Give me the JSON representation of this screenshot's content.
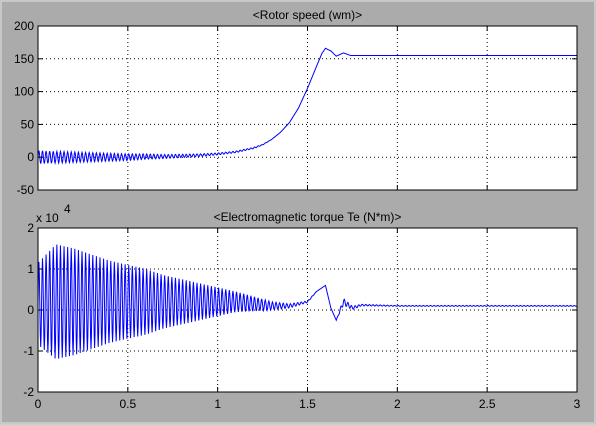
{
  "chart_data": [
    {
      "type": "line",
      "title": "<Rotor speed (wm)>",
      "xlabel": "",
      "ylabel": "",
      "xlim": [
        0,
        3
      ],
      "ylim": [
        -50,
        200
      ],
      "xticks": [
        0,
        0.5,
        1,
        1.5,
        2,
        2.5,
        3
      ],
      "xtick_labels": [
        "",
        "",
        "",
        "",
        "",
        "",
        ""
      ],
      "yticks": [
        -50,
        0,
        50,
        100,
        150,
        200
      ],
      "ytick_labels": [
        "-50",
        "0",
        "50",
        "100",
        "150",
        "200"
      ],
      "exponent_label": "",
      "grid": true,
      "color": "#0000ff",
      "series": [
        {
          "x": [
            0,
            0.1,
            0.2,
            0.3,
            0.4,
            0.5,
            0.6,
            0.7,
            0.8,
            0.9,
            1.0,
            1.1,
            1.2,
            1.25,
            1.3,
            1.35,
            1.4,
            1.45,
            1.5,
            1.53,
            1.56,
            1.58,
            1.6,
            1.63,
            1.66,
            1.7,
            1.74,
            1.8,
            2.0,
            2.5,
            3.0
          ],
          "values": [
            0,
            0,
            0,
            0,
            0,
            0,
            1,
            1,
            2,
            3,
            5,
            8,
            14,
            19,
            27,
            38,
            53,
            75,
            105,
            125,
            145,
            158,
            166,
            162,
            154,
            159,
            155,
            155,
            155,
            155,
            155
          ],
          "oscillation_amplitude": [
            10,
            9,
            8,
            7,
            6,
            5,
            4,
            3,
            2.5,
            2,
            1.5,
            1.2,
            1,
            0.5,
            0,
            0,
            0,
            0,
            0,
            0,
            0,
            0,
            0,
            0,
            0,
            0,
            0,
            0,
            0,
            0,
            0
          ]
        }
      ]
    },
    {
      "type": "line",
      "title": "<Electromagnetic torque Te (N*m)>",
      "xlabel": "",
      "ylabel": "",
      "xlim": [
        0,
        3
      ],
      "ylim": [
        -2,
        2
      ],
      "xticks": [
        0,
        0.5,
        1,
        1.5,
        2,
        2.5,
        3
      ],
      "xtick_labels": [
        "0",
        "0.5",
        "1",
        "1.5",
        "2",
        "2.5",
        "3"
      ],
      "yticks": [
        -2,
        -1,
        0,
        1,
        2
      ],
      "ytick_labels": [
        "-2",
        "-1",
        "0",
        "1",
        "2"
      ],
      "exponent_label": "x 10",
      "exponent_power": "4",
      "grid": true,
      "color": "#0000ff",
      "series": [
        {
          "x": [
            0,
            0.1,
            0.2,
            0.3,
            0.4,
            0.5,
            0.6,
            0.7,
            0.8,
            0.9,
            1.0,
            1.1,
            1.2,
            1.3,
            1.4,
            1.5,
            1.55,
            1.6,
            1.63,
            1.66,
            1.7,
            1.75,
            1.8,
            2.0,
            2.5,
            3.0
          ],
          "values": [
            0.15,
            0.2,
            0.2,
            0.2,
            0.2,
            0.2,
            0.2,
            0.2,
            0.2,
            0.2,
            0.2,
            0.2,
            0.15,
            0.1,
            0.1,
            0.2,
            0.45,
            0.6,
            0.05,
            -0.25,
            0.2,
            0.05,
            0.12,
            0.1,
            0.1,
            0.1
          ],
          "oscillation_amplitude": [
            1.0,
            1.4,
            1.3,
            1.15,
            1.0,
            0.9,
            0.8,
            0.65,
            0.55,
            0.45,
            0.35,
            0.25,
            0.18,
            0.1,
            0.05,
            0.02,
            0,
            0,
            0,
            0,
            0.08,
            0.04,
            0.02,
            0.01,
            0.01,
            0.01
          ]
        }
      ]
    }
  ]
}
